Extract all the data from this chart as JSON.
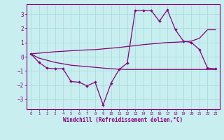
{
  "xlabel": "Windchill (Refroidissement éolien,°C)",
  "background_color": "#c8eef0",
  "grid_color": "#aadddd",
  "line_color": "#880077",
  "xlim": [
    -0.5,
    23.5
  ],
  "ylim": [
    -3.7,
    3.7
  ],
  "xticks": [
    0,
    1,
    2,
    3,
    4,
    5,
    6,
    7,
    8,
    9,
    10,
    11,
    12,
    13,
    14,
    15,
    16,
    17,
    18,
    19,
    20,
    21,
    22,
    23
  ],
  "yticks": [
    -3,
    -2,
    -1,
    0,
    1,
    2,
    3
  ],
  "line1_x": [
    0,
    1,
    2,
    3,
    4,
    5,
    6,
    7,
    8,
    9,
    10,
    11,
    12,
    13,
    14,
    15,
    16,
    17,
    18,
    19,
    20,
    21,
    22,
    23
  ],
  "line1_y": [
    0.2,
    -0.4,
    -0.8,
    -0.85,
    -0.85,
    -1.75,
    -1.8,
    -2.05,
    -1.8,
    -3.4,
    -1.85,
    -0.9,
    -0.45,
    3.25,
    3.25,
    3.25,
    2.5,
    3.3,
    1.9,
    1.1,
    1.0,
    0.5,
    -0.8,
    -0.85
  ],
  "line2_x": [
    0,
    1,
    2,
    3,
    4,
    5,
    6,
    7,
    8,
    9,
    10,
    11,
    12,
    13,
    14,
    15,
    16,
    17,
    18,
    19,
    20,
    21,
    22,
    23
  ],
  "line2_y": [
    0.2,
    -0.1,
    -0.25,
    -0.4,
    -0.5,
    -0.6,
    -0.65,
    -0.7,
    -0.75,
    -0.8,
    -0.85,
    -0.88,
    -0.9,
    -0.9,
    -0.9,
    -0.9,
    -0.9,
    -0.9,
    -0.9,
    -0.9,
    -0.9,
    -0.9,
    -0.9,
    -0.9
  ],
  "line3_x": [
    0,
    1,
    2,
    3,
    4,
    5,
    6,
    7,
    8,
    9,
    10,
    11,
    12,
    13,
    14,
    15,
    16,
    17,
    18,
    19,
    20,
    21,
    22,
    23
  ],
  "line3_y": [
    0.2,
    0.25,
    0.3,
    0.35,
    0.38,
    0.42,
    0.45,
    0.48,
    0.5,
    0.55,
    0.6,
    0.65,
    0.72,
    0.78,
    0.85,
    0.9,
    0.95,
    1.0,
    1.02,
    1.05,
    1.1,
    1.3,
    1.9,
    1.9
  ]
}
